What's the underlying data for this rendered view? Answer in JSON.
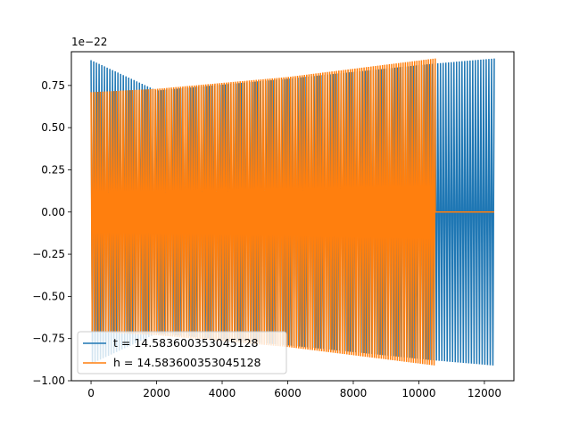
{
  "chart_data": {
    "type": "line",
    "title": "",
    "xlabel": "",
    "ylabel": "",
    "xlim": [
      -600,
      12900
    ],
    "ylim": [
      -1.0,
      0.95
    ],
    "y_offset_text": "1e−22",
    "x_ticks": [
      {
        "value": 0,
        "label": "0"
      },
      {
        "value": 2000,
        "label": "2000"
      },
      {
        "value": 4000,
        "label": "4000"
      },
      {
        "value": 6000,
        "label": "6000"
      },
      {
        "value": 8000,
        "label": "8000"
      },
      {
        "value": 10000,
        "label": "10000"
      },
      {
        "value": 12000,
        "label": "12000"
      }
    ],
    "y_ticks": [
      {
        "value": -1.0,
        "label": "−1.00"
      },
      {
        "value": -0.75,
        "label": "−0.75"
      },
      {
        "value": -0.5,
        "label": "−0.50"
      },
      {
        "value": -0.25,
        "label": "−0.25"
      },
      {
        "value": 0.0,
        "label": "0.00"
      },
      {
        "value": 0.25,
        "label": "0.25"
      },
      {
        "value": 0.5,
        "label": "0.50"
      },
      {
        "value": 0.75,
        "label": "0.75"
      }
    ],
    "grid": false,
    "legend_position": "lower-left",
    "series": [
      {
        "name": "t = 14.583600353045128",
        "color": "#1f77b4",
        "kind": "oscillation",
        "x_start": 0,
        "x_end": 12300,
        "envelope": [
          [
            0,
            0.9
          ],
          [
            2000,
            0.72
          ],
          [
            6000,
            0.79
          ],
          [
            10500,
            0.88
          ],
          [
            12300,
            0.91
          ]
        ],
        "oscillation_count": 300
      },
      {
        "name": "h = 14.583600353045128",
        "color": "#ff7f0e",
        "kind": "oscillation_then_flat",
        "x_start": 0,
        "x_active_end": 10500,
        "x_end": 12300,
        "flat_value": 0.0,
        "envelope": [
          [
            0,
            0.71
          ],
          [
            2000,
            0.73
          ],
          [
            6000,
            0.8
          ],
          [
            10500,
            0.91
          ]
        ],
        "oscillation_count": 300
      }
    ]
  }
}
